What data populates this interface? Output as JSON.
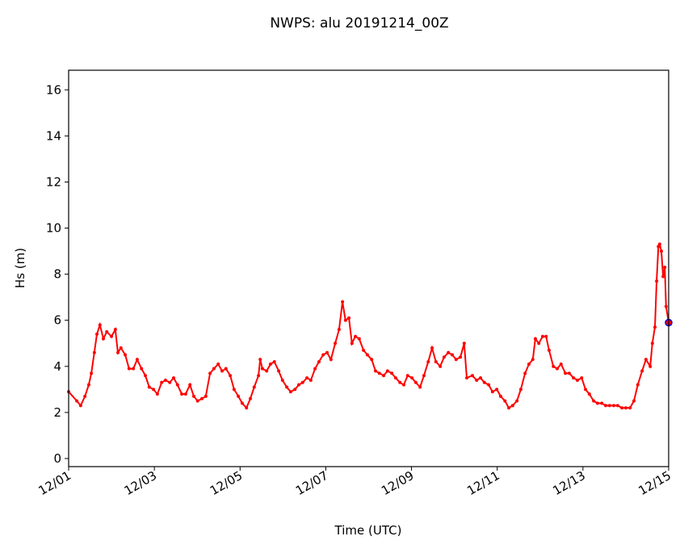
{
  "chart_data": {
    "type": "line",
    "title": "NWPS: alu 20191214_00Z",
    "xlabel": "Time (UTC)",
    "ylabel": "Hs (m)",
    "x_units": "days since 12/01 00Z",
    "xlim": [
      0,
      14
    ],
    "ylim": [
      -0.35,
      16.85
    ],
    "yticks": [
      0,
      2,
      4,
      6,
      8,
      10,
      12,
      14,
      16
    ],
    "xticks": [
      0,
      2,
      4,
      6,
      8,
      10,
      12,
      14
    ],
    "xtick_labels": [
      "12/01",
      "12/03",
      "12/05",
      "12/07",
      "12/09",
      "12/11",
      "12/13",
      "12/15"
    ],
    "grid": false,
    "series": [
      {
        "name": "Hs",
        "color": "#ff0000",
        "x": [
          0,
          0.19,
          0.28,
          0.38,
          0.47,
          0.53,
          0.6,
          0.66,
          0.73,
          0.81,
          0.89,
          1.0,
          1.09,
          1.15,
          1.22,
          1.32,
          1.41,
          1.51,
          1.6,
          1.7,
          1.79,
          1.88,
          1.98,
          2.07,
          2.17,
          2.26,
          2.36,
          2.45,
          2.54,
          2.64,
          2.73,
          2.83,
          2.92,
          3.01,
          3.11,
          3.2,
          3.3,
          3.39,
          3.49,
          3.58,
          3.67,
          3.77,
          3.86,
          3.96,
          4.05,
          4.15,
          4.24,
          4.33,
          4.43,
          4.47,
          4.52,
          4.62,
          4.71,
          4.8,
          4.9,
          4.99,
          5.09,
          5.18,
          5.28,
          5.37,
          5.46,
          5.56,
          5.65,
          5.75,
          5.84,
          5.94,
          6.03,
          6.12,
          6.22,
          6.31,
          6.39,
          6.46,
          6.54,
          6.61,
          6.69,
          6.78,
          6.88,
          6.97,
          7.07,
          7.16,
          7.25,
          7.35,
          7.44,
          7.54,
          7.63,
          7.73,
          7.82,
          7.91,
          8.01,
          8.1,
          8.2,
          8.29,
          8.39,
          8.48,
          8.57,
          8.67,
          8.76,
          8.86,
          8.95,
          9.04,
          9.14,
          9.23,
          9.29,
          9.42,
          9.52,
          9.61,
          9.7,
          9.8,
          9.89,
          9.99,
          10.08,
          10.18,
          10.27,
          10.36,
          10.46,
          10.55,
          10.65,
          10.74,
          10.83,
          10.89,
          10.97,
          11.06,
          11.14,
          11.21,
          11.31,
          11.4,
          11.49,
          11.59,
          11.68,
          11.78,
          11.87,
          11.97,
          12.06,
          12.15,
          12.25,
          12.34,
          12.44,
          12.53,
          12.62,
          12.72,
          12.81,
          12.91,
          13.0,
          13.1,
          13.19,
          13.28,
          13.38,
          13.47,
          13.57,
          13.62,
          13.68,
          13.72,
          13.76,
          13.79,
          13.83,
          13.87,
          13.91,
          13.94,
          14.0
        ],
        "y": [
          2.9,
          2.5,
          2.3,
          2.7,
          3.2,
          3.7,
          4.6,
          5.4,
          5.8,
          5.2,
          5.5,
          5.3,
          5.6,
          4.6,
          4.8,
          4.5,
          3.9,
          3.9,
          4.3,
          3.9,
          3.6,
          3.1,
          3.0,
          2.8,
          3.3,
          3.4,
          3.3,
          3.5,
          3.2,
          2.8,
          2.8,
          3.2,
          2.7,
          2.5,
          2.6,
          2.7,
          3.7,
          3.9,
          4.1,
          3.8,
          3.9,
          3.6,
          3.0,
          2.7,
          2.4,
          2.2,
          2.6,
          3.1,
          3.6,
          4.3,
          3.9,
          3.8,
          4.1,
          4.2,
          3.8,
          3.4,
          3.1,
          2.9,
          3.0,
          3.2,
          3.3,
          3.5,
          3.4,
          3.9,
          4.2,
          4.5,
          4.6,
          4.3,
          5.0,
          5.6,
          6.8,
          6.0,
          6.1,
          5.0,
          5.3,
          5.2,
          4.7,
          4.5,
          4.3,
          3.8,
          3.7,
          3.6,
          3.8,
          3.7,
          3.5,
          3.3,
          3.2,
          3.6,
          3.5,
          3.3,
          3.1,
          3.6,
          4.2,
          4.8,
          4.2,
          4.0,
          4.4,
          4.6,
          4.5,
          4.3,
          4.4,
          5.0,
          3.5,
          3.6,
          3.4,
          3.5,
          3.3,
          3.2,
          2.9,
          3.0,
          2.7,
          2.5,
          2.2,
          2.3,
          2.5,
          3.0,
          3.7,
          4.1,
          4.3,
          5.2,
          5.0,
          5.3,
          5.3,
          4.7,
          4.0,
          3.9,
          4.1,
          3.7,
          3.7,
          3.5,
          3.4,
          3.5,
          3.0,
          2.8,
          2.5,
          2.4,
          2.4,
          2.3,
          2.3,
          2.3,
          2.3,
          2.2,
          2.2,
          2.2,
          2.5,
          3.2,
          3.8,
          4.3,
          4.0,
          5.0,
          5.7,
          7.7,
          9.2,
          9.3,
          9.0,
          7.9,
          8.3,
          6.6,
          5.9
        ]
      }
    ],
    "highlight_point": {
      "x": 14.0,
      "y": 5.9,
      "edge_color": "#0000ff"
    }
  }
}
